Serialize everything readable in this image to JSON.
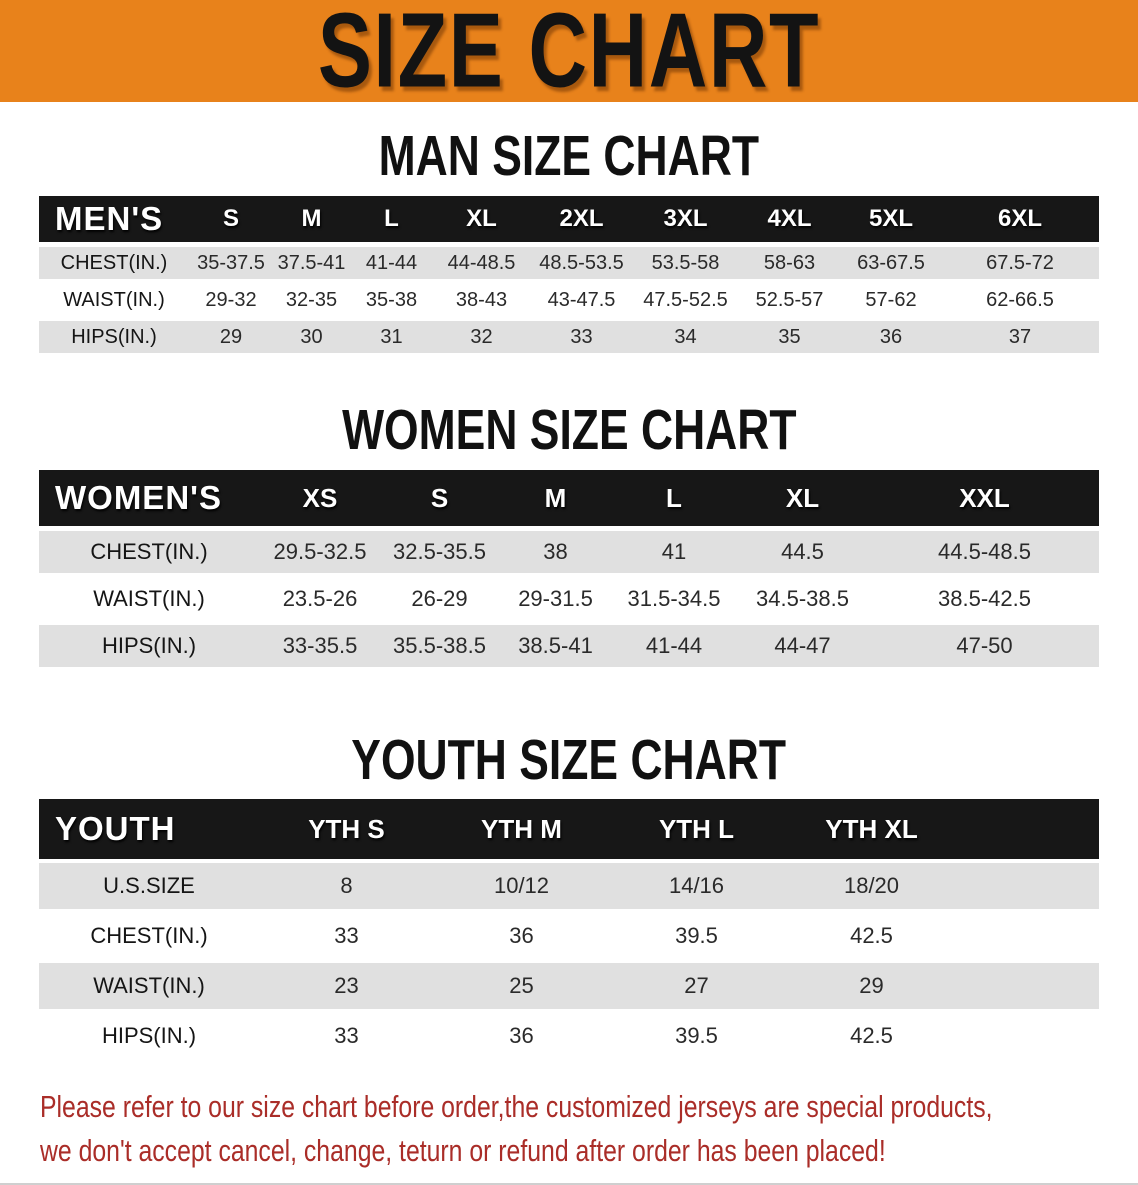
{
  "banner": {
    "title": "SIZE CHART",
    "bg_color": "#E8821B",
    "text_color": "#131313"
  },
  "colors": {
    "header_bar": "#171717",
    "row_stripe": "#E0E0E0",
    "notice_text": "#AA2D28"
  },
  "sections": [
    {
      "heading": "MAN SIZE CHART",
      "table": {
        "header_label": "MEN'S",
        "columns": [
          "S",
          "M",
          "L",
          "XL",
          "2XL",
          "3XL",
          "4XL",
          "5XL",
          "6XL"
        ],
        "rows": [
          {
            "label": "CHEST(IN.)",
            "values": [
              "35-37.5",
              "37.5-41",
              "41-44",
              "44-48.5",
              "48.5-53.5",
              "53.5-58",
              "58-63",
              "63-67.5",
              "67.5-72"
            ]
          },
          {
            "label": "WAIST(IN.)",
            "values": [
              "29-32",
              "32-35",
              "35-38",
              "38-43",
              "43-47.5",
              "47.5-52.5",
              "52.5-57",
              "57-62",
              "62-66.5"
            ]
          },
          {
            "label": "HIPS(IN.)",
            "values": [
              "29",
              "30",
              "31",
              "32",
              "33",
              "34",
              "35",
              "36",
              "37"
            ]
          }
        ]
      }
    },
    {
      "heading": "WOMEN SIZE CHART",
      "table": {
        "header_label": "WOMEN'S",
        "columns": [
          "XS",
          "S",
          "M",
          "L",
          "XL",
          "XXL"
        ],
        "rows": [
          {
            "label": "CHEST(IN.)",
            "values": [
              "29.5-32.5",
              "32.5-35.5",
              "38",
              "41",
              "44.5",
              "44.5-48.5"
            ]
          },
          {
            "label": "WAIST(IN.)",
            "values": [
              "23.5-26",
              "26-29",
              "29-31.5",
              "31.5-34.5",
              "34.5-38.5",
              "38.5-42.5"
            ]
          },
          {
            "label": "HIPS(IN.)",
            "values": [
              "33-35.5",
              "35.5-38.5",
              "38.5-41",
              "41-44",
              "44-47",
              "47-50"
            ]
          }
        ]
      }
    },
    {
      "heading": "YOUTH SIZE CHART",
      "table": {
        "header_label": "YOUTH",
        "columns": [
          "YTH S",
          "YTH M",
          "YTH L",
          "YTH XL"
        ],
        "rows": [
          {
            "label": "U.S.SIZE",
            "values": [
              "8",
              "10/12",
              "14/16",
              "18/20"
            ]
          },
          {
            "label": "CHEST(IN.)",
            "values": [
              "33",
              "36",
              "39.5",
              "42.5"
            ]
          },
          {
            "label": "WAIST(IN.)",
            "values": [
              "23",
              "25",
              "27",
              "29"
            ]
          },
          {
            "label": "HIPS(IN.)",
            "values": [
              "33",
              "36",
              "39.5",
              "42.5"
            ]
          }
        ]
      }
    }
  ],
  "footer": {
    "line1": "Please refer to our size chart before order,the customized jerseys are special products,",
    "line2": "we don't accept cancel, change, teturn or refund after order has been placed!"
  }
}
